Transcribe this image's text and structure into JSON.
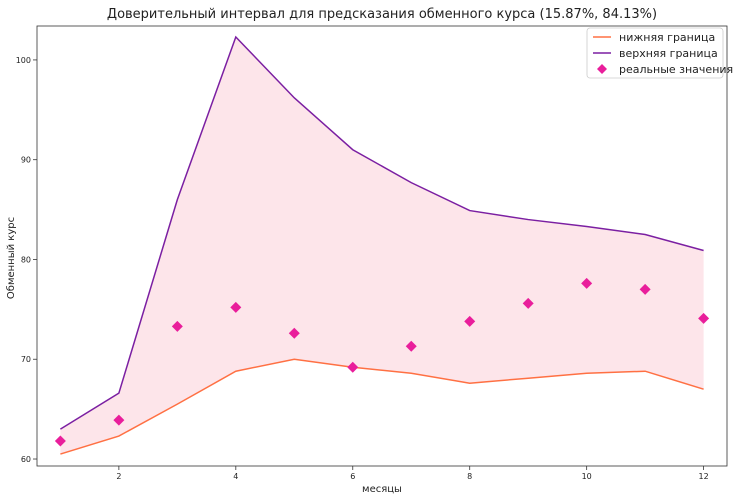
{
  "chart_data": {
    "type": "line",
    "title": "Доверительный интервал для предсказания обменного курса (15.87%, 84.13%)",
    "xlabel": "месяцы",
    "ylabel": "Обменный курс",
    "x": [
      1,
      2,
      3,
      4,
      5,
      6,
      7,
      8,
      9,
      10,
      11,
      12
    ],
    "xlim": [
      0.6,
      12.4
    ],
    "ylim": [
      59.3,
      103.4
    ],
    "xticks": [
      2,
      4,
      6,
      8,
      10,
      12
    ],
    "yticks": [
      60,
      70,
      80,
      90,
      100
    ],
    "grid": false,
    "legend_position": "top-right",
    "series": [
      {
        "name": "нижняя граница",
        "kind": "line",
        "color": "#ff7043",
        "values": [
          60.5,
          62.3,
          65.5,
          68.8,
          70.0,
          69.2,
          68.6,
          67.6,
          68.1,
          68.6,
          68.8,
          67.0
        ]
      },
      {
        "name": "верхняя граница",
        "kind": "line",
        "color": "#7b1fa2",
        "values": [
          63.0,
          66.6,
          86.0,
          102.3,
          96.2,
          91.0,
          87.7,
          84.9,
          84.0,
          83.3,
          82.5,
          80.9
        ]
      },
      {
        "name": "реальные значения",
        "kind": "scatter",
        "marker": "diamond",
        "color": "#e91e9b",
        "values": [
          61.8,
          63.9,
          73.3,
          75.2,
          72.6,
          69.2,
          71.3,
          73.8,
          75.6,
          77.6,
          77.0,
          74.1
        ]
      }
    ],
    "fill_between": {
      "lower": "нижняя граница",
      "upper": "верхняя граница",
      "color": "#fde5ea"
    }
  }
}
